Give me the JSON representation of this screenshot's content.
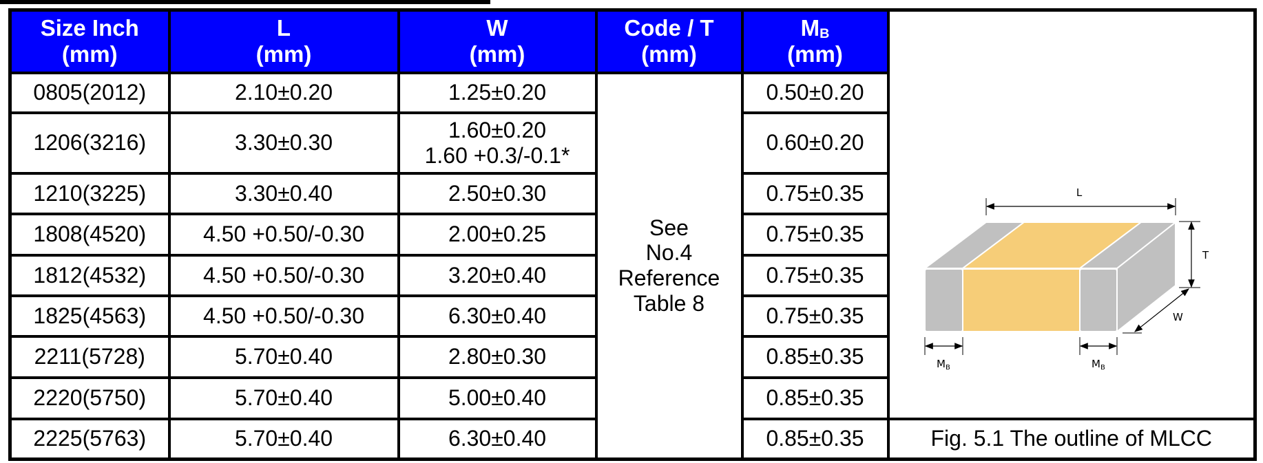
{
  "headers": [
    {
      "line1": "Size Inch",
      "line2": "(mm)"
    },
    {
      "line1": "L",
      "line2": "(mm)"
    },
    {
      "line1": "W",
      "line2": "(mm)"
    },
    {
      "line1": "Code / T",
      "line2": "(mm)"
    },
    {
      "line1": "M",
      "sub": "B",
      "line2": "(mm)"
    }
  ],
  "rows": [
    {
      "size": "0805(2012)",
      "l": "2.10±0.20",
      "w": "1.25±0.20",
      "w2": "",
      "mb": "0.50±0.20"
    },
    {
      "size": "1206(3216)",
      "l": "3.30±0.30",
      "w": "1.60±0.20",
      "w2": "1.60 +0.3/-0.1*",
      "mb": "0.60±0.20"
    },
    {
      "size": "1210(3225)",
      "l": "3.30±0.40",
      "w": "2.50±0.30",
      "w2": "",
      "mb": "0.75±0.35"
    },
    {
      "size": "1808(4520)",
      "l": "4.50 +0.50/-0.30",
      "w": "2.00±0.25",
      "w2": "",
      "mb": "0.75±0.35"
    },
    {
      "size": "1812(4532)",
      "l": "4.50 +0.50/-0.30",
      "w": "3.20±0.40",
      "w2": "",
      "mb": "0.75±0.35"
    },
    {
      "size": "1825(4563)",
      "l": "4.50 +0.50/-0.30",
      "w": "6.30±0.40",
      "w2": "",
      "mb": "0.75±0.35"
    },
    {
      "size": "2211(5728)",
      "l": "5.70±0.40",
      "w": "2.80±0.30",
      "w2": "",
      "mb": "0.85±0.35"
    },
    {
      "size": "2220(5750)",
      "l": "5.70±0.40",
      "w": "5.00±0.40",
      "w2": "",
      "mb": "0.85±0.35"
    },
    {
      "size": "2225(5763)",
      "l": "5.70±0.40",
      "w": "6.30±0.40",
      "w2": "",
      "mb": "0.85±0.35"
    }
  ],
  "code_t": {
    "line1": "See",
    "line2": "No.4",
    "line3": "Reference",
    "line4": "Table 8"
  },
  "figure": {
    "caption": "Fig. 5.1 The outline of MLCC",
    "label_l": "L",
    "label_t": "T",
    "label_w": "W",
    "label_m": "M",
    "label_b": "B",
    "colors": {
      "header_bg": "#0000ff",
      "electrode": "#c0c0c0",
      "body": "#f6cd78"
    }
  }
}
